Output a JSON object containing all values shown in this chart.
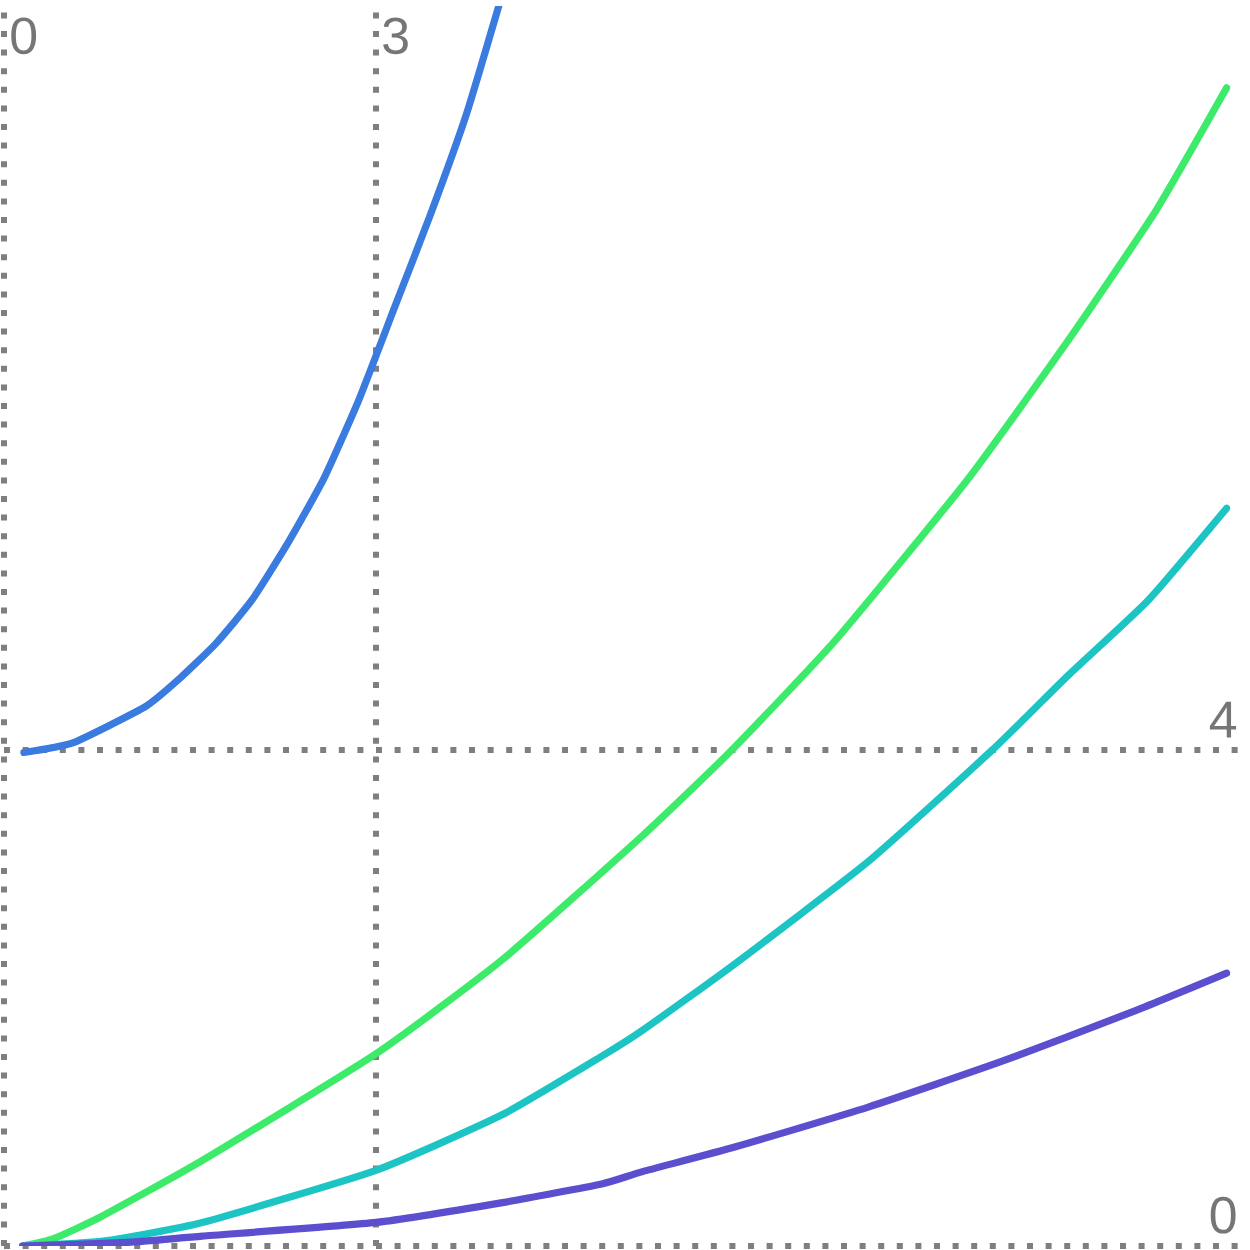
{
  "chart_data": {
    "type": "line",
    "series": [
      {
        "color": "#3a7bdf",
        "x": [
          0.16,
          0.56,
          1.14,
          1.42,
          1.71,
          2.0,
          2.29,
          2.58,
          2.86,
          3.15,
          3.44,
          3.73,
          3.99
        ],
        "values": [
          3.98,
          4.06,
          4.35,
          4.58,
          4.86,
          5.21,
          5.67,
          6.19,
          6.82,
          7.57,
          8.32,
          9.13,
          10.0
        ]
      },
      {
        "color": "#3deb6a",
        "x": [
          0.15,
          0.4,
          0.79,
          1.6,
          3.0,
          4.02,
          5.15,
          5.87,
          6.71,
          7.77,
          8.58,
          9.29,
          9.86
        ],
        "values": [
          0.0,
          0.06,
          0.24,
          0.69,
          1.55,
          2.31,
          3.31,
          4.0,
          4.89,
          6.18,
          7.3,
          8.35,
          9.34
        ]
      },
      {
        "color": "#1cc4c4",
        "x": [
          0.15,
          0.8,
          1.6,
          3.0,
          4.02,
          4.82,
          5.15,
          5.9,
          6.97,
          7.97,
          8.58,
          9.23,
          9.86
        ],
        "values": [
          0.0,
          0.04,
          0.19,
          0.61,
          1.06,
          1.53,
          1.74,
          2.28,
          3.1,
          4.0,
          4.6,
          5.21,
          5.95
        ]
      },
      {
        "color": "#5b4fcf",
        "x": [
          0.15,
          1.0,
          1.6,
          3.0,
          4.02,
          4.82,
          5.15,
          5.9,
          6.97,
          8.05,
          9.13,
          9.86
        ],
        "values": [
          0.0,
          0.03,
          0.08,
          0.19,
          0.35,
          0.5,
          0.6,
          0.8,
          1.12,
          1.49,
          1.9,
          2.2
        ]
      }
    ],
    "xlim": [
      0,
      10
    ],
    "ylim": [
      0,
      10
    ],
    "xticks": [
      0,
      3
    ],
    "yticks": [
      0,
      4
    ],
    "grid": true,
    "line_style": "solid"
  }
}
